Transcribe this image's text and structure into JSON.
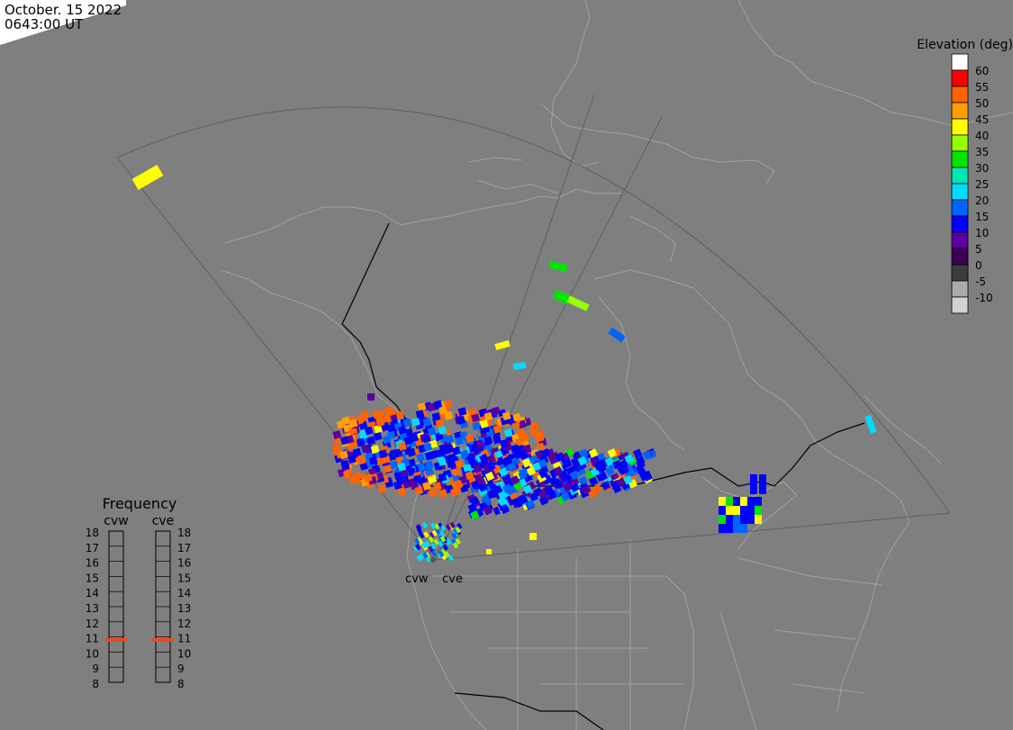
{
  "header": {
    "date": "October. 15 2022",
    "time": "0643:00 UT"
  },
  "legend": {
    "title": "Elevation (deg)",
    "bins": [
      {
        "label": "60",
        "color": "#ffffff"
      },
      {
        "label": "55",
        "color": "#ff0000"
      },
      {
        "label": "50",
        "color": "#ff6400"
      },
      {
        "label": "45",
        "color": "#ffa000"
      },
      {
        "label": "40",
        "color": "#ffff00"
      },
      {
        "label": "35",
        "color": "#96ff00"
      },
      {
        "label": "30",
        "color": "#00e600"
      },
      {
        "label": "25",
        "color": "#00e6b4"
      },
      {
        "label": "20",
        "color": "#00dcff"
      },
      {
        "label": "15",
        "color": "#0064ff"
      },
      {
        "label": "10",
        "color": "#0000ff"
      },
      {
        "label": "5",
        "color": "#5a00a0"
      },
      {
        "label": "0",
        "color": "#3c005a"
      },
      {
        "label": "-5",
        "color": "#3c3c3c"
      },
      {
        "label": "-10",
        "color": "#aaaaaa"
      },
      {
        "label": "",
        "color": "#d2d2d2"
      }
    ]
  },
  "frequency": {
    "title": "Frequency",
    "radars": [
      "cvw",
      "cve"
    ],
    "scale": [
      "18",
      "17",
      "16",
      "15",
      "14",
      "13",
      "12",
      "11",
      "10",
      "9",
      "8"
    ],
    "cvw_mhz": 10.8,
    "cve_mhz": 10.8,
    "marker_color": "#e64b1e"
  },
  "sites": {
    "west": "cvw",
    "east": "cve"
  },
  "colors": {
    "background": "#7f7f7f",
    "coast": "#a0a0a0",
    "border": "#000000",
    "fov": "#5a5a5a",
    "daylight": "#ffffff"
  }
}
